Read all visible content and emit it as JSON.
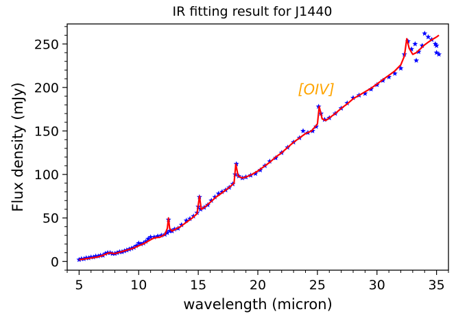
{
  "chart_data": {
    "type": "line",
    "title": "IR fitting result for J1440",
    "xlabel": "wavelength (micron)",
    "ylabel": "Flux density (mJy)",
    "xlim": [
      4.0,
      36.0
    ],
    "ylim": [
      -10,
      273
    ],
    "xticks": [
      5,
      10,
      15,
      20,
      25,
      30,
      35
    ],
    "yticks": [
      0,
      50,
      100,
      150,
      200,
      250
    ],
    "grid": false,
    "annotations": [
      {
        "text": "[OIV]",
        "x": 24.9,
        "y": 192,
        "color": "#ffa500"
      }
    ],
    "series": [
      {
        "kind": "scatter",
        "marker": "star",
        "color": "#0000ff",
        "points": [
          [
            5.0,
            2
          ],
          [
            5.2,
            3
          ],
          [
            5.4,
            3
          ],
          [
            5.6,
            4
          ],
          [
            5.8,
            4
          ],
          [
            6.0,
            5
          ],
          [
            6.2,
            5
          ],
          [
            6.4,
            6
          ],
          [
            6.6,
            6
          ],
          [
            6.8,
            7
          ],
          [
            7.0,
            7
          ],
          [
            7.2,
            9
          ],
          [
            7.4,
            10
          ],
          [
            7.6,
            10
          ],
          [
            7.8,
            9
          ],
          [
            8.0,
            9
          ],
          [
            8.2,
            10
          ],
          [
            8.4,
            11
          ],
          [
            8.6,
            11
          ],
          [
            8.8,
            12
          ],
          [
            9.0,
            13
          ],
          [
            9.2,
            14
          ],
          [
            9.4,
            15
          ],
          [
            9.6,
            16
          ],
          [
            9.8,
            18
          ],
          [
            10.0,
            21
          ],
          [
            10.2,
            20
          ],
          [
            10.4,
            21
          ],
          [
            10.6,
            23
          ],
          [
            10.8,
            26
          ],
          [
            11.0,
            28
          ],
          [
            11.3,
            28
          ],
          [
            11.6,
            29
          ],
          [
            11.9,
            30
          ],
          [
            12.2,
            31
          ],
          [
            12.4,
            33
          ],
          [
            12.5,
            48
          ],
          [
            12.6,
            35
          ],
          [
            12.8,
            35
          ],
          [
            13.0,
            37
          ],
          [
            13.3,
            38
          ],
          [
            13.6,
            42
          ],
          [
            14.0,
            47
          ],
          [
            14.3,
            49
          ],
          [
            14.6,
            52
          ],
          [
            14.9,
            56
          ],
          [
            15.0,
            63
          ],
          [
            15.1,
            74
          ],
          [
            15.2,
            60
          ],
          [
            15.5,
            62
          ],
          [
            15.8,
            65
          ],
          [
            16.1,
            70
          ],
          [
            16.4,
            74
          ],
          [
            16.7,
            78
          ],
          [
            17.0,
            80
          ],
          [
            17.3,
            82
          ],
          [
            17.6,
            85
          ],
          [
            17.9,
            89
          ],
          [
            18.1,
            100
          ],
          [
            18.2,
            112
          ],
          [
            18.4,
            98
          ],
          [
            18.7,
            96
          ],
          [
            19.0,
            97
          ],
          [
            19.4,
            99
          ],
          [
            19.8,
            101
          ],
          [
            20.2,
            105
          ],
          [
            20.6,
            110
          ],
          [
            21.0,
            115
          ],
          [
            21.5,
            119
          ],
          [
            22.0,
            125
          ],
          [
            22.5,
            131
          ],
          [
            23.0,
            137
          ],
          [
            23.5,
            142
          ],
          [
            23.8,
            150
          ],
          [
            24.2,
            148
          ],
          [
            24.6,
            150
          ],
          [
            24.9,
            155
          ],
          [
            25.1,
            178
          ],
          [
            25.3,
            170
          ],
          [
            25.6,
            163
          ],
          [
            26.0,
            165
          ],
          [
            26.5,
            170
          ],
          [
            27.0,
            176
          ],
          [
            27.5,
            182
          ],
          [
            28.0,
            188
          ],
          [
            28.5,
            191
          ],
          [
            29.0,
            193
          ],
          [
            29.5,
            198
          ],
          [
            30.0,
            203
          ],
          [
            30.5,
            208
          ],
          [
            31.0,
            212
          ],
          [
            31.5,
            216
          ],
          [
            32.0,
            222
          ],
          [
            32.3,
            238
          ],
          [
            32.6,
            253
          ],
          [
            32.9,
            244
          ],
          [
            33.2,
            250
          ],
          [
            33.5,
            241
          ],
          [
            33.8,
            248
          ],
          [
            34.0,
            262
          ],
          [
            34.3,
            258
          ],
          [
            34.6,
            255
          ],
          [
            34.9,
            250
          ],
          [
            35.0,
            240
          ],
          [
            35.2,
            238
          ],
          [
            33.3,
            231
          ],
          [
            35.0,
            248
          ]
        ]
      },
      {
        "kind": "line",
        "color": "#ff0000",
        "points": [
          [
            5.0,
            2
          ],
          [
            5.5,
            3
          ],
          [
            6.0,
            4
          ],
          [
            6.5,
            5
          ],
          [
            7.0,
            7
          ],
          [
            7.5,
            10
          ],
          [
            8.0,
            9
          ],
          [
            8.5,
            11
          ],
          [
            9.0,
            13
          ],
          [
            9.5,
            15
          ],
          [
            10.0,
            18
          ],
          [
            10.5,
            21
          ],
          [
            11.0,
            25
          ],
          [
            11.3,
            27
          ],
          [
            11.8,
            28
          ],
          [
            12.2,
            31
          ],
          [
            12.4,
            38
          ],
          [
            12.5,
            50
          ],
          [
            12.6,
            38
          ],
          [
            12.8,
            35
          ],
          [
            13.5,
            40
          ],
          [
            14.0,
            45
          ],
          [
            14.5,
            50
          ],
          [
            14.9,
            55
          ],
          [
            15.1,
            75
          ],
          [
            15.25,
            60
          ],
          [
            15.5,
            62
          ],
          [
            16.0,
            68
          ],
          [
            16.5,
            74
          ],
          [
            17.0,
            79
          ],
          [
            17.5,
            84
          ],
          [
            18.0,
            90
          ],
          [
            18.15,
            112
          ],
          [
            18.35,
            98
          ],
          [
            18.7,
            96
          ],
          [
            19.0,
            97
          ],
          [
            19.5,
            100
          ],
          [
            20.0,
            104
          ],
          [
            20.5,
            109
          ],
          [
            21.0,
            114
          ],
          [
            21.5,
            120
          ],
          [
            22.0,
            125
          ],
          [
            22.5,
            131
          ],
          [
            23.0,
            137
          ],
          [
            23.5,
            142
          ],
          [
            24.0,
            147
          ],
          [
            24.5,
            150
          ],
          [
            25.0,
            158
          ],
          [
            25.15,
            178
          ],
          [
            25.4,
            164
          ],
          [
            25.7,
            162
          ],
          [
            26.0,
            165
          ],
          [
            26.5,
            170
          ],
          [
            27.0,
            176
          ],
          [
            27.5,
            181
          ],
          [
            28.0,
            187
          ],
          [
            28.5,
            191
          ],
          [
            29.0,
            195
          ],
          [
            29.5,
            199
          ],
          [
            30.0,
            204
          ],
          [
            30.5,
            209
          ],
          [
            31.0,
            214
          ],
          [
            31.5,
            219
          ],
          [
            32.0,
            226
          ],
          [
            32.3,
            236
          ],
          [
            32.5,
            256
          ],
          [
            32.7,
            245
          ],
          [
            33.0,
            238
          ],
          [
            33.3,
            240
          ],
          [
            33.7,
            245
          ],
          [
            34.0,
            249
          ],
          [
            34.5,
            254
          ],
          [
            35.0,
            258
          ],
          [
            35.2,
            260
          ]
        ]
      }
    ]
  }
}
